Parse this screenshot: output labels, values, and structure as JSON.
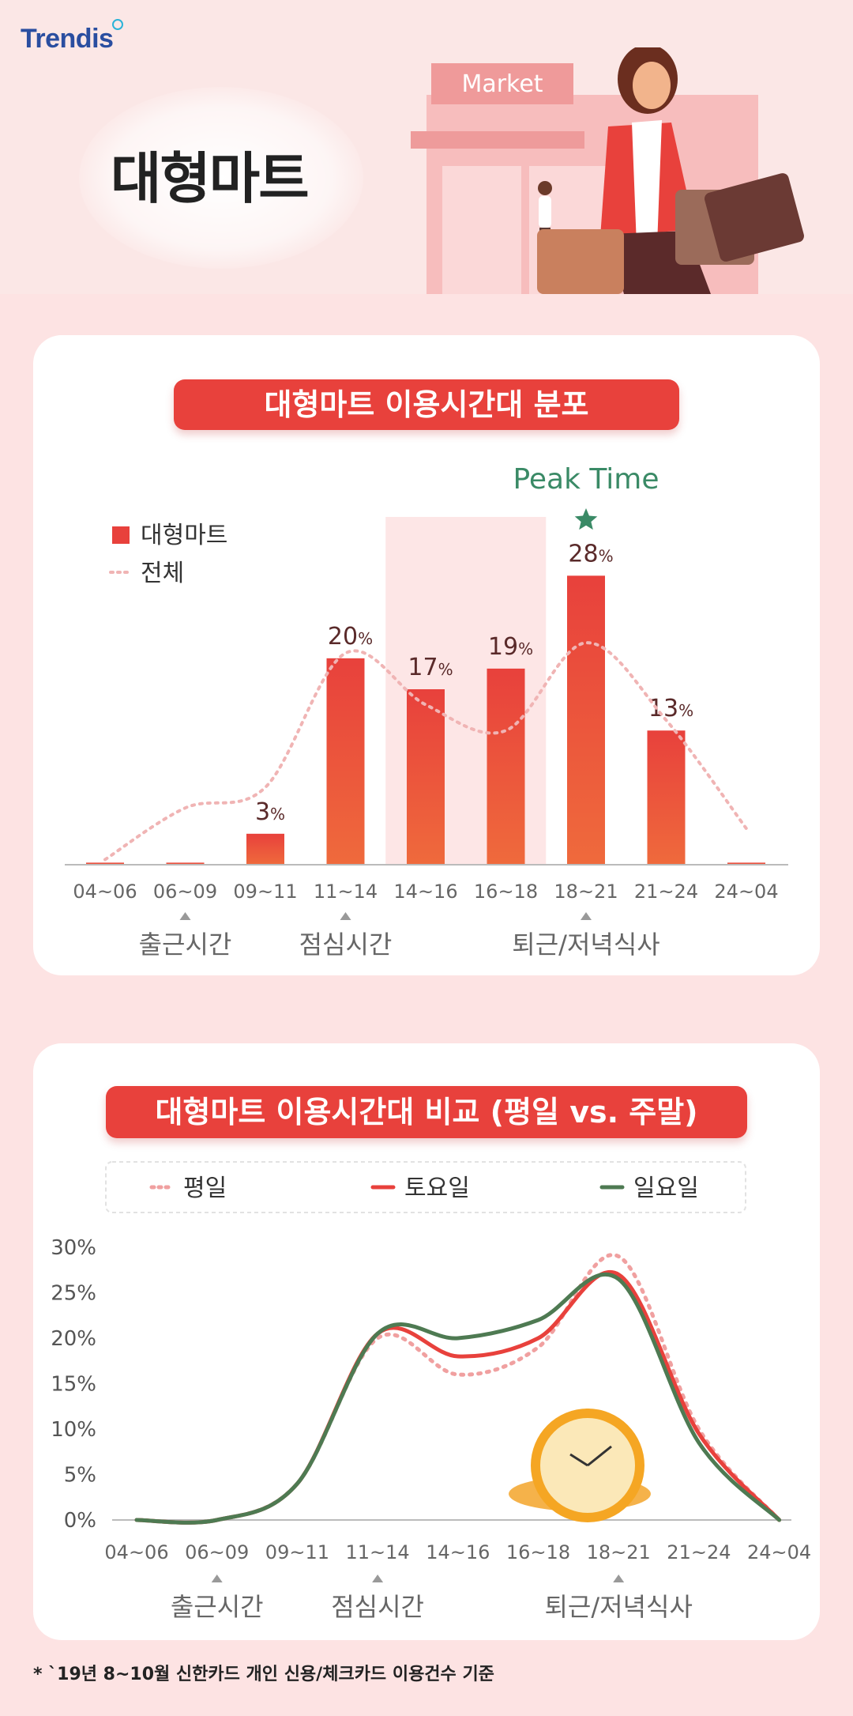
{
  "brand": {
    "logo": "Trendis"
  },
  "hero": {
    "title": "대형마트",
    "store_sign": "Market"
  },
  "chart1": {
    "title": "대형마트 이용시간대 분포",
    "peak_label": "Peak Time",
    "legend": [
      {
        "label": "대형마트",
        "color": "#e8413c",
        "style": "bar"
      },
      {
        "label": "전체",
        "color": "#f0b4b4",
        "style": "dotted-line"
      }
    ],
    "annotations": [
      {
        "label": "출근시간",
        "category": "06~09"
      },
      {
        "label": "점심시간",
        "category": "11~14"
      },
      {
        "label": "퇴근/저녁식사",
        "category": "18~21"
      }
    ]
  },
  "chart2": {
    "title": "대형마트 이용시간대 비교 (평일 vs. 주말)",
    "annotations": [
      {
        "label": "출근시간",
        "category": "06~09"
      },
      {
        "label": "점심시간",
        "category": "11~14"
      },
      {
        "label": "퇴근/저녁식사",
        "category": "18~21"
      }
    ]
  },
  "footnote": "* `19년 8~10월 신한카드 개인 신용/체크카드 이용건수 기준",
  "chart_data": [
    {
      "type": "bar",
      "title": "대형마트 이용시간대 분포",
      "categories": [
        "04~06",
        "06~09",
        "09~11",
        "11~14",
        "14~16",
        "16~18",
        "18~21",
        "21~24",
        "24~04"
      ],
      "series": [
        {
          "name": "대형마트",
          "type": "bar",
          "color": "#e8413c",
          "values": [
            0.2,
            0.2,
            3,
            20,
            17,
            19,
            28,
            13,
            0.2
          ],
          "labels": [
            "",
            "",
            "3%",
            "20%",
            "17%",
            "19%",
            "28%",
            "13%",
            ""
          ]
        },
        {
          "name": "전체",
          "type": "line",
          "color": "#f0b4b4",
          "values": [
            0.5,
            5.5,
            7.5,
            20.5,
            15.5,
            13,
            21.5,
            14,
            3.5
          ]
        }
      ],
      "ylim": [
        0,
        34
      ],
      "highlight_categories": [
        "14~16",
        "16~18"
      ],
      "peak_category": "18~21",
      "legend_position": "top-left",
      "grid": false
    },
    {
      "type": "line",
      "title": "대형마트 이용시간대 비교 (평일 vs. 주말)",
      "categories": [
        "04~06",
        "06~09",
        "09~11",
        "11~14",
        "14~16",
        "16~18",
        "18~21",
        "21~24",
        "24~04"
      ],
      "yticks": [
        "0%",
        "5%",
        "10%",
        "15%",
        "20%",
        "25%",
        "30%"
      ],
      "ylim": [
        0,
        30
      ],
      "series": [
        {
          "name": "평일",
          "color": "#f0a0a0",
          "style": "dotted",
          "values": [
            0,
            0,
            4,
            20,
            16,
            19,
            29,
            10,
            0
          ]
        },
        {
          "name": "토요일",
          "color": "#e8413c",
          "style": "solid",
          "values": [
            0,
            0,
            4,
            20.5,
            18,
            20,
            27,
            9.5,
            0
          ]
        },
        {
          "name": "일요일",
          "color": "#4e7a52",
          "style": "solid",
          "values": [
            0,
            0,
            4,
            20.5,
            20,
            22,
            26.5,
            8.5,
            0
          ]
        }
      ],
      "legend_position": "top",
      "grid": false
    }
  ]
}
